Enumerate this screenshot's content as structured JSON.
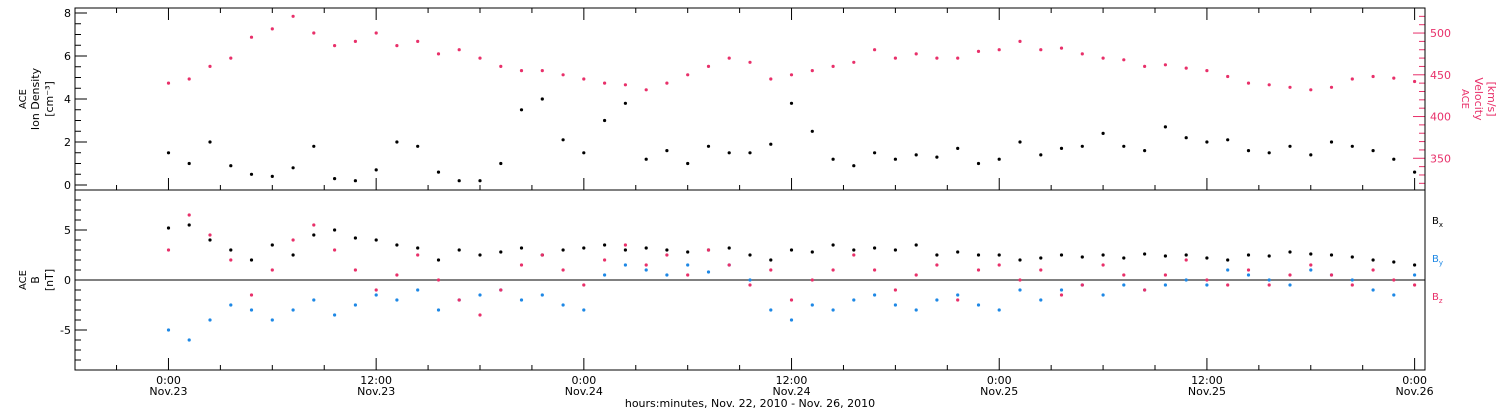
{
  "chart_data": [
    {
      "type": "scatter",
      "panel": "top",
      "ylabel": [
        "ACE",
        "Ion Density",
        "[cm⁻³]"
      ],
      "ylim": [
        0,
        8
      ],
      "yticks": [
        "0",
        "2",
        "4",
        "6",
        "8"
      ],
      "y2label": [
        "ACE",
        "Velocity",
        "[km/s]"
      ],
      "y2lim": [
        312,
        530
      ],
      "y2ticks": [
        "350",
        "400",
        "450",
        "500"
      ],
      "grid": false,
      "series": [
        {
          "axis": "left",
          "color": "#000000",
          "x": [
            0.0,
            0.1,
            0.2,
            0.3,
            0.4,
            0.5,
            0.6,
            0.7,
            0.8,
            0.9,
            1.0,
            1.1,
            1.2,
            1.3,
            1.4,
            1.5,
            1.6,
            1.7,
            1.8,
            1.9,
            2.0,
            2.1,
            2.2,
            2.3,
            2.4,
            2.5,
            2.6,
            2.7,
            2.8,
            2.9,
            3.0,
            3.1,
            3.2,
            3.3,
            3.4,
            3.5,
            3.6,
            3.7,
            3.8,
            3.9,
            4.0,
            4.1,
            4.2,
            4.3,
            4.4,
            4.5,
            4.6,
            4.7,
            4.8,
            4.9,
            5.0,
            5.1,
            5.2,
            5.3,
            5.4,
            5.5,
            5.6,
            5.7,
            5.8,
            5.9,
            6.0,
            6.1
          ],
          "y": [
            1.5,
            1.0,
            2.0,
            0.9,
            0.5,
            0.4,
            0.8,
            1.8,
            0.3,
            0.2,
            0.7,
            2.0,
            1.8,
            0.6,
            0.2,
            0.2,
            1.0,
            3.5,
            4.0,
            2.1,
            1.5,
            3.0,
            3.8,
            1.2,
            1.6,
            1.0,
            1.8,
            1.5,
            1.5,
            1.9,
            3.8,
            2.5,
            1.2,
            0.9,
            1.5,
            1.2,
            1.4,
            1.3,
            1.7,
            1.0,
            1.2,
            2.0,
            1.4,
            1.7,
            1.8,
            2.4,
            1.8,
            1.6,
            2.7,
            2.2,
            2.0,
            2.1,
            1.6,
            1.5,
            1.8,
            1.4,
            2.0,
            1.8,
            1.6,
            1.2,
            0.6,
            1.0
          ]
        },
        {
          "axis": "right",
          "color": "#e8306a",
          "x": [
            0.0,
            0.1,
            0.2,
            0.3,
            0.4,
            0.5,
            0.6,
            0.7,
            0.8,
            0.9,
            1.0,
            1.1,
            1.2,
            1.3,
            1.4,
            1.5,
            1.6,
            1.7,
            1.8,
            1.9,
            2.0,
            2.1,
            2.2,
            2.3,
            2.4,
            2.5,
            2.6,
            2.7,
            2.8,
            2.9,
            3.0,
            3.1,
            3.2,
            3.3,
            3.4,
            3.5,
            3.6,
            3.7,
            3.8,
            3.9,
            4.0,
            4.1,
            4.2,
            4.3,
            4.4,
            4.5,
            4.6,
            4.7,
            4.8,
            4.9,
            5.0,
            5.1,
            5.2,
            5.3,
            5.4,
            5.5,
            5.6,
            5.7,
            5.8,
            5.9,
            6.0,
            6.1
          ],
          "y": [
            440,
            445,
            460,
            470,
            495,
            505,
            520,
            500,
            485,
            490,
            500,
            485,
            490,
            475,
            480,
            470,
            460,
            455,
            455,
            450,
            445,
            440,
            438,
            432,
            440,
            450,
            460,
            470,
            465,
            445,
            450,
            455,
            460,
            465,
            480,
            470,
            475,
            470,
            470,
            478,
            480,
            490,
            480,
            482,
            475,
            470,
            468,
            460,
            462,
            458,
            455,
            448,
            440,
            438,
            435,
            432,
            435,
            445,
            448,
            446,
            442,
            435
          ]
        }
      ]
    },
    {
      "type": "scatter",
      "panel": "bottom",
      "ylabel": [
        "ACE",
        "B",
        "[nT]"
      ],
      "ylim": [
        -9,
        9
      ],
      "yticks": [
        "-5",
        "0",
        "5"
      ],
      "grid": false,
      "xlabel": "hours:minutes, Nov. 22, 2010 - Nov. 26, 2010",
      "xticks": [
        {
          "time": "0:00",
          "date": "Nov.23"
        },
        {
          "time": "12:00",
          "date": "Nov.23"
        },
        {
          "time": "0:00",
          "date": "Nov.24"
        },
        {
          "time": "12:00",
          "date": "Nov.24"
        },
        {
          "time": "0:00",
          "date": "Nov.25"
        },
        {
          "time": "12:00",
          "date": "Nov.25"
        },
        {
          "time": "0:00",
          "date": "Nov.26"
        }
      ],
      "legend_position": "right",
      "series": [
        {
          "name": "Bx",
          "name_base": "B",
          "name_sub": "x",
          "color": "#000000",
          "x": [
            0.0,
            0.1,
            0.2,
            0.3,
            0.4,
            0.5,
            0.6,
            0.7,
            0.8,
            0.9,
            1.0,
            1.1,
            1.2,
            1.3,
            1.4,
            1.5,
            1.6,
            1.7,
            1.8,
            1.9,
            2.0,
            2.1,
            2.2,
            2.3,
            2.4,
            2.5,
            2.6,
            2.7,
            2.8,
            2.9,
            3.0,
            3.1,
            3.2,
            3.3,
            3.4,
            3.5,
            3.6,
            3.7,
            3.8,
            3.9,
            4.0,
            4.1,
            4.2,
            4.3,
            4.4,
            4.5,
            4.6,
            4.7,
            4.8,
            4.9,
            5.0,
            5.1,
            5.2,
            5.3,
            5.4,
            5.5,
            5.6,
            5.7,
            5.8,
            5.9,
            6.0,
            6.1
          ],
          "y": [
            5.2,
            5.5,
            4.0,
            3.0,
            2.0,
            3.5,
            2.5,
            4.5,
            5.0,
            4.2,
            4.0,
            3.5,
            3.2,
            2.0,
            3.0,
            2.5,
            2.8,
            3.2,
            2.5,
            3.0,
            3.2,
            3.5,
            3.0,
            3.2,
            3.0,
            2.8,
            3.0,
            3.2,
            2.5,
            2.0,
            3.0,
            2.8,
            3.5,
            3.0,
            3.2,
            3.0,
            3.5,
            2.5,
            2.8,
            2.5,
            2.5,
            2.0,
            2.2,
            2.5,
            2.3,
            2.5,
            2.2,
            2.6,
            2.4,
            2.5,
            2.2,
            2.0,
            2.5,
            2.4,
            2.8,
            2.6,
            2.5,
            2.3,
            2.0,
            1.8,
            1.5,
            1.8
          ]
        },
        {
          "name": "By",
          "name_base": "B",
          "name_sub": "y",
          "color": "#1e88e5",
          "x": [
            0.0,
            0.1,
            0.2,
            0.3,
            0.4,
            0.5,
            0.6,
            0.7,
            0.8,
            0.9,
            1.0,
            1.1,
            1.2,
            1.3,
            1.4,
            1.5,
            1.6,
            1.7,
            1.8,
            1.9,
            2.0,
            2.1,
            2.2,
            2.3,
            2.4,
            2.5,
            2.6,
            2.7,
            2.8,
            2.9,
            3.0,
            3.1,
            3.2,
            3.3,
            3.4,
            3.5,
            3.6,
            3.7,
            3.8,
            3.9,
            4.0,
            4.1,
            4.2,
            4.3,
            4.4,
            4.5,
            4.6,
            4.7,
            4.8,
            4.9,
            5.0,
            5.1,
            5.2,
            5.3,
            5.4,
            5.5,
            5.6,
            5.7,
            5.8,
            5.9,
            6.0,
            6.1
          ],
          "y": [
            -5.0,
            -6.0,
            -4.0,
            -2.5,
            -3.0,
            -4.0,
            -3.0,
            -2.0,
            -3.5,
            -2.5,
            -1.5,
            -2.0,
            -1.0,
            -3.0,
            -2.0,
            -1.5,
            -1.0,
            -2.0,
            -1.5,
            -2.5,
            -3.0,
            0.5,
            1.5,
            1.0,
            0.5,
            1.5,
            0.8,
            1.5,
            0.0,
            -3.0,
            -4.0,
            -2.5,
            -3.0,
            -2.0,
            -1.5,
            -2.5,
            -3.0,
            -2.0,
            -1.5,
            -2.5,
            -3.0,
            -1.0,
            -2.0,
            -1.0,
            -0.5,
            -1.5,
            -0.5,
            -1.0,
            -0.5,
            0.0,
            -0.5,
            1.0,
            0.5,
            0.0,
            -0.5,
            1.0,
            0.5,
            0.0,
            -1.0,
            -1.5,
            0.5,
            -2.0
          ]
        },
        {
          "name": "Bz",
          "name_base": "B",
          "name_sub": "z",
          "color": "#e8306a",
          "x": [
            0.0,
            0.1,
            0.2,
            0.3,
            0.4,
            0.5,
            0.6,
            0.7,
            0.8,
            0.9,
            1.0,
            1.1,
            1.2,
            1.3,
            1.4,
            1.5,
            1.6,
            1.7,
            1.8,
            1.9,
            2.0,
            2.1,
            2.2,
            2.3,
            2.4,
            2.5,
            2.6,
            2.7,
            2.8,
            2.9,
            3.0,
            3.1,
            3.2,
            3.3,
            3.4,
            3.5,
            3.6,
            3.7,
            3.8,
            3.9,
            4.0,
            4.1,
            4.2,
            4.3,
            4.4,
            4.5,
            4.6,
            4.7,
            4.8,
            4.9,
            5.0,
            5.1,
            5.2,
            5.3,
            5.4,
            5.5,
            5.6,
            5.7,
            5.8,
            5.9,
            6.0,
            6.1
          ],
          "y": [
            3.0,
            6.5,
            4.5,
            2.0,
            -1.5,
            1.0,
            4.0,
            5.5,
            3.0,
            1.0,
            -1.0,
            0.5,
            2.5,
            0.0,
            -2.0,
            -3.5,
            -1.0,
            1.5,
            2.5,
            1.0,
            -0.5,
            2.0,
            3.5,
            1.5,
            2.5,
            0.5,
            3.0,
            1.5,
            -0.5,
            1.0,
            -2.0,
            0.0,
            1.0,
            2.5,
            1.0,
            -1.0,
            0.5,
            1.5,
            -2.0,
            1.0,
            1.5,
            0.0,
            1.0,
            -1.5,
            -0.5,
            1.5,
            0.5,
            -1.0,
            0.5,
            2.0,
            0.0,
            -0.5,
            1.0,
            -0.5,
            0.5,
            1.5,
            0.5,
            -0.5,
            1.0,
            0.0,
            -0.5,
            -1.0
          ]
        }
      ]
    }
  ]
}
